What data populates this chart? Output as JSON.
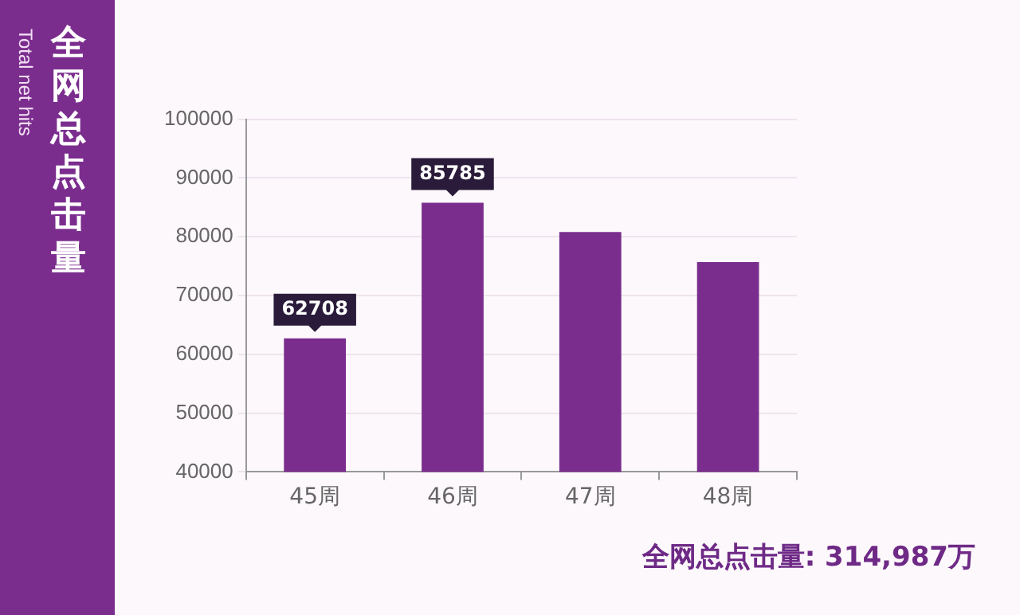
{
  "chart_data": {
    "type": "bar",
    "title": "全网总点击量",
    "subtitle": "Total net hits",
    "categories": [
      "45周",
      "46周",
      "47周",
      "48周"
    ],
    "values": [
      62708,
      85785,
      80800,
      75700
    ],
    "value_labels": [
      "62708",
      "85785",
      null,
      null
    ],
    "color": "#7b2d8e",
    "ylim": [
      40000,
      100000
    ],
    "yticks": [
      40000,
      50000,
      60000,
      70000,
      80000,
      90000,
      100000
    ],
    "grid": "y",
    "legend": false,
    "annotations": [
      "全网总点击量: 314,987万"
    ]
  }
}
